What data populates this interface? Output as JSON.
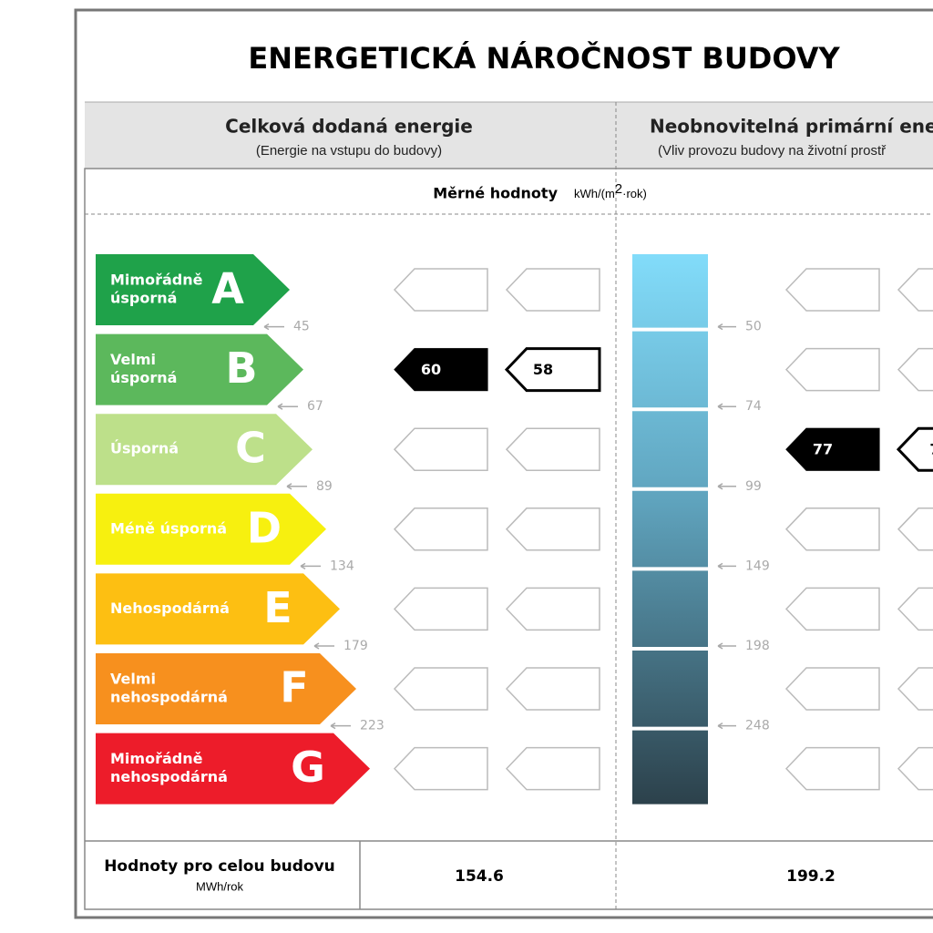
{
  "title": "ENERGETICKÁ NÁROČNOST BUDOVY",
  "columns": [
    {
      "title": "Celková dodaná energie",
      "subtitle": "(Energie na vstupu do budovy)"
    },
    {
      "title": "Neobnovitelná primární ene",
      "subtitle": "(Vliv provozu budovy na životní prostř"
    }
  ],
  "unit_row": {
    "label": "Měrné hodnoty",
    "unit": "kWh/(m",
    "unit_power": "2",
    "unit_end": "·rok)"
  },
  "classes": [
    {
      "letter": "A",
      "name": [
        "Mimořádně",
        "úsporná"
      ],
      "color": "#1fa24a"
    },
    {
      "letter": "B",
      "name": [
        "Velmi",
        "úsporná"
      ],
      "color": "#5cb85c"
    },
    {
      "letter": "C",
      "name": [
        "Úsporná"
      ],
      "color": "#bde08a"
    },
    {
      "letter": "D",
      "name": [
        "Méně úsporná"
      ],
      "color": "#f7f00f"
    },
    {
      "letter": "E",
      "name": [
        "Nehospodárná"
      ],
      "color": "#fdbf12"
    },
    {
      "letter": "F",
      "name": [
        "Velmi",
        "nehospodárná"
      ],
      "color": "#f7901e"
    },
    {
      "letter": "G",
      "name": [
        "Mimořádně",
        "nehospodárná"
      ],
      "color": "#ed1c2a"
    }
  ],
  "left_thresholds": [
    "45",
    "67",
    "89",
    "134",
    "179",
    "223"
  ],
  "right_thresholds": [
    "50",
    "74",
    "99",
    "149",
    "198",
    "248"
  ],
  "left_markers": {
    "filled": "60",
    "outline": "58"
  },
  "right_markers": {
    "filled": "77",
    "outline": "7"
  },
  "footer": {
    "label": "Hodnoty pro celou budovu",
    "unit": "MWh/rok",
    "values": [
      "154.6",
      "199.2"
    ]
  }
}
